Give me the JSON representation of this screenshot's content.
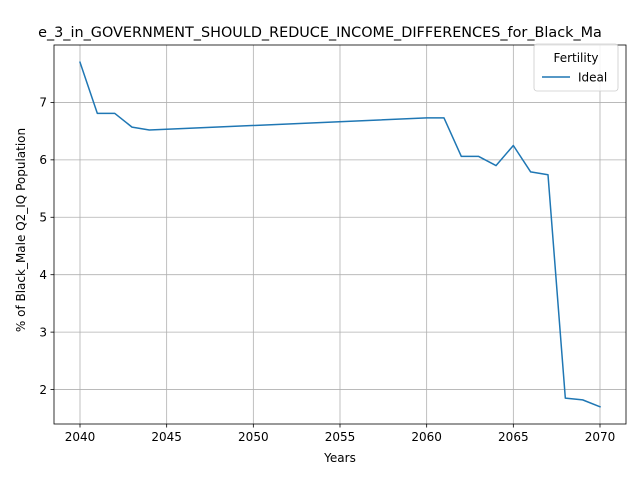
{
  "chart_data": {
    "type": "line",
    "title": "e_3_in_GOVERNMENT_SHOULD_REDUCE_INCOME_DIFFERENCES_for_Black_Ma",
    "xlabel": "Years",
    "ylabel": "% of Black_Male Q2_IQ Population",
    "xlim": [
      2038.5,
      2071.5
    ],
    "ylim": [
      1.4,
      8.0
    ],
    "xticks": [
      2040,
      2045,
      2050,
      2055,
      2060,
      2065,
      2070
    ],
    "yticks": [
      2,
      3,
      4,
      5,
      6,
      7
    ],
    "grid": true,
    "legend": {
      "title": "Fertility",
      "placement": "top-right"
    },
    "series": [
      {
        "name": "Ideal",
        "color": "#1f77b4",
        "x": [
          2040,
          2041,
          2042,
          2043,
          2044,
          2060,
          2061,
          2062,
          2063,
          2064,
          2065,
          2066,
          2067,
          2068,
          2069,
          2070
        ],
        "y": [
          7.7,
          6.81,
          6.81,
          6.57,
          6.52,
          6.73,
          6.73,
          6.06,
          6.06,
          5.9,
          6.25,
          5.79,
          5.74,
          1.85,
          1.82,
          1.7
        ]
      }
    ]
  }
}
